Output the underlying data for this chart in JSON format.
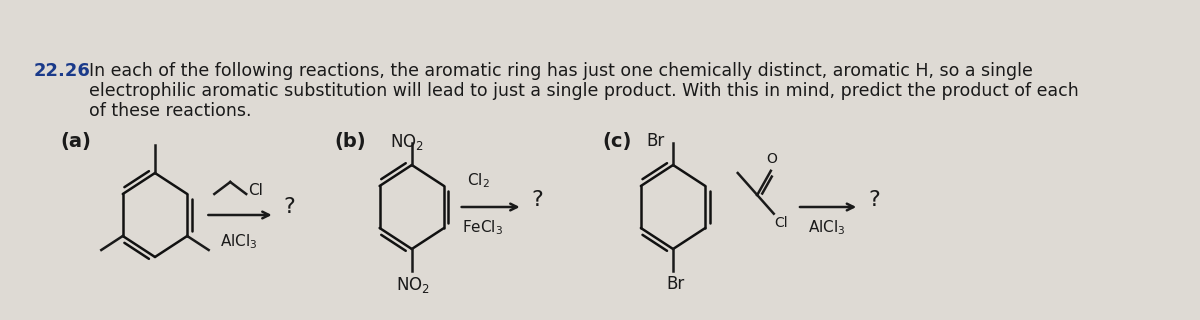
{
  "background_color": "#dedad4",
  "problem_number": "22.26",
  "problem_text_line1": "In each of the following reactions, the aromatic ring has just one chemically distinct, aromatic H, so a single",
  "problem_text_line2": "electrophilic aromatic substitution will lead to just a single product. With this in mind, predict the product of each",
  "problem_text_line3": "of these reactions.",
  "text_color": "#1a1a1a",
  "num_color": "#1a3a8a",
  "label_a": "(a)",
  "label_b": "(b)",
  "label_c": "(c)",
  "font_size_main": 12.5,
  "font_size_label": 13,
  "font_size_chem": 10
}
